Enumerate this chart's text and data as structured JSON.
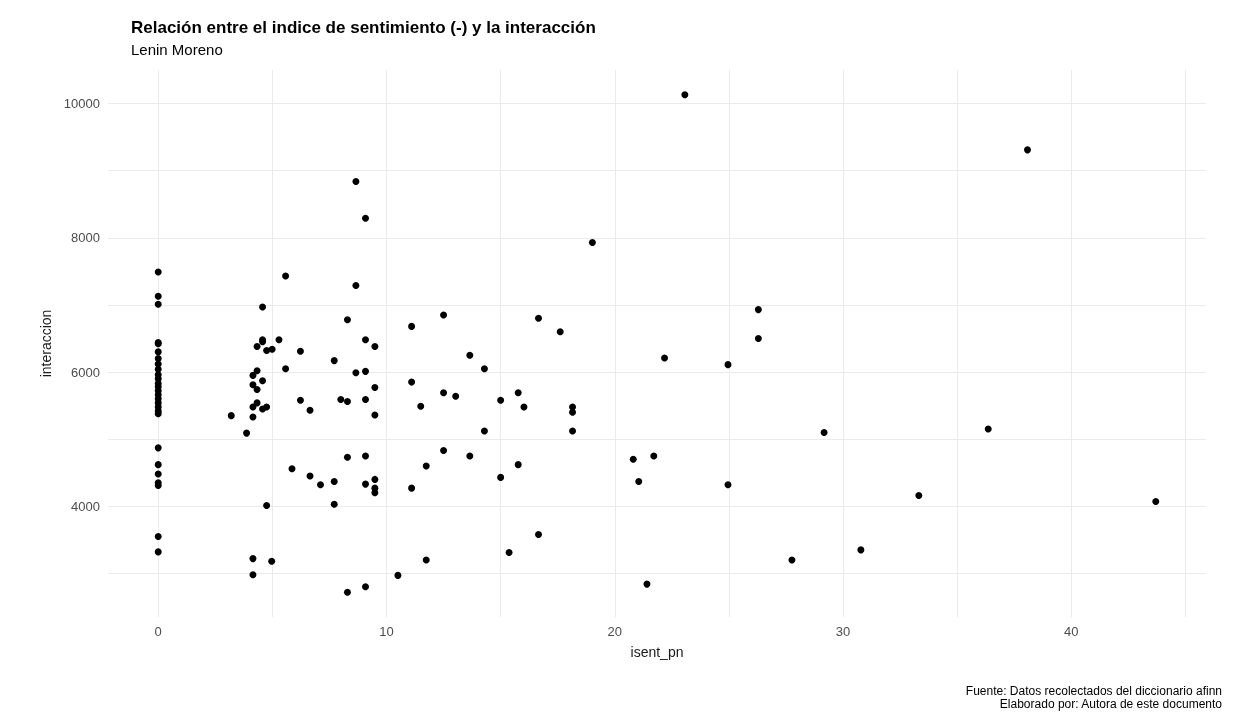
{
  "chart_data": {
    "type": "scatter",
    "title": "Relación entre el indice de sentimiento (-) y la interacción",
    "subtitle": "Lenin Moreno",
    "xlabel": "isent_pn",
    "ylabel": "interaccion",
    "annotations": [
      "Fuente: Datos recolectados del diccionario afinn",
      "Elaborado por: Autora de este documento"
    ],
    "xlim": [
      -2.2,
      45.9
    ],
    "ylim": [
      2350,
      10500
    ],
    "xticks": [
      0,
      {
        "value": 5,
        "label": null
      },
      10,
      {
        "value": 15,
        "label": null
      },
      20,
      {
        "value": 25,
        "label": null
      },
      30,
      {
        "value": 35,
        "label": null
      },
      40,
      {
        "value": 45,
        "label": null
      }
    ],
    "yticks": [
      {
        "value": 3000,
        "label": null
      },
      4000,
      {
        "value": 5000,
        "label": null
      },
      6000,
      {
        "value": 7000,
        "label": null
      },
      8000,
      {
        "value": 9000,
        "label": null
      },
      10000
    ],
    "grid": true,
    "marker": "circle",
    "series": [
      {
        "color": "#000000",
        "x": [
          0,
          0,
          0,
          0,
          0,
          0,
          0,
          0,
          0,
          0,
          0,
          0,
          0,
          0,
          0,
          0,
          0,
          0,
          0,
          0,
          0,
          0,
          0,
          0,
          0,
          0,
          0,
          4.15,
          4.15,
          4.97,
          5.58,
          4.57,
          4.57,
          4.57,
          5.29,
          4.33,
          4.75,
          4.99,
          6.23,
          5.58,
          4.33,
          4.15,
          4.57,
          4.15,
          4.33,
          4.33,
          4.15,
          4.57,
          4.75,
          4.15,
          3.2,
          3.87,
          6.23,
          6.65,
          5.86,
          6.65,
          7.11,
          7.71,
          7.71,
          4.75,
          7.71,
          8.0,
          8.29,
          8.29,
          8.66,
          9.08,
          8.66,
          9.08,
          9.49,
          8.66,
          9.08,
          9.49,
          9.08,
          9.49,
          8.29,
          9.08,
          9.08,
          9.49,
          9.49,
          9.49,
          8.29,
          9.08,
          10.5,
          11.74,
          11.1,
          12.5,
          11.1,
          11.5,
          12.5,
          13.03,
          13.65,
          14.29,
          14.29,
          13.65,
          12.5,
          11.74,
          11.1,
          15.0,
          15.0,
          23.07,
          19.02,
          26.29,
          26.29,
          22.18,
          24.96,
          16.66,
          17.61,
          15.77,
          16.02,
          18.15,
          18.15,
          18.15,
          15.77,
          20.81,
          21.71,
          21.05,
          24.96,
          16.66,
          15.37,
          21.41,
          38.08,
          29.17,
          36.36,
          33.32,
          43.7,
          27.76,
          30.78
        ],
        "values": [
          7490,
          7130,
          7010,
          6440,
          6420,
          6300,
          6200,
          6120,
          6040,
          5960,
          5900,
          5830,
          5780,
          5720,
          5660,
          5600,
          5540,
          5480,
          5420,
          5380,
          4870,
          4620,
          4480,
          4350,
          4310,
          3550,
          3320,
          3220,
          2980,
          3180,
          7430,
          6970,
          6480,
          6450,
          6480,
          6380,
          6320,
          6340,
          6310,
          6050,
          6020,
          5950,
          5870,
          5810,
          5740,
          5540,
          5480,
          5450,
          5480,
          5330,
          5350,
          5090,
          5580,
          5430,
          4560,
          4450,
          4320,
          4370,
          4030,
          4010,
          6170,
          5590,
          5560,
          6780,
          8840,
          8290,
          7290,
          6480,
          6380,
          5990,
          6010,
          5770,
          5590,
          5360,
          4730,
          4750,
          4330,
          4400,
          4270,
          4200,
          2720,
          2800,
          2970,
          3200,
          6680,
          6850,
          5850,
          5490,
          5690,
          5640,
          6250,
          6050,
          5120,
          4750,
          4830,
          4600,
          4270,
          5580,
          4430,
          10130,
          7930,
          6930,
          6500,
          6210,
          6110,
          6800,
          6600,
          5690,
          5480,
          5480,
          5400,
          5120,
          4620,
          4700,
          4750,
          4370,
          4320,
          3580,
          3310,
          2840,
          9310,
          5100,
          5150,
          4160,
          4070,
          3200,
          3350
        ]
      }
    ]
  }
}
